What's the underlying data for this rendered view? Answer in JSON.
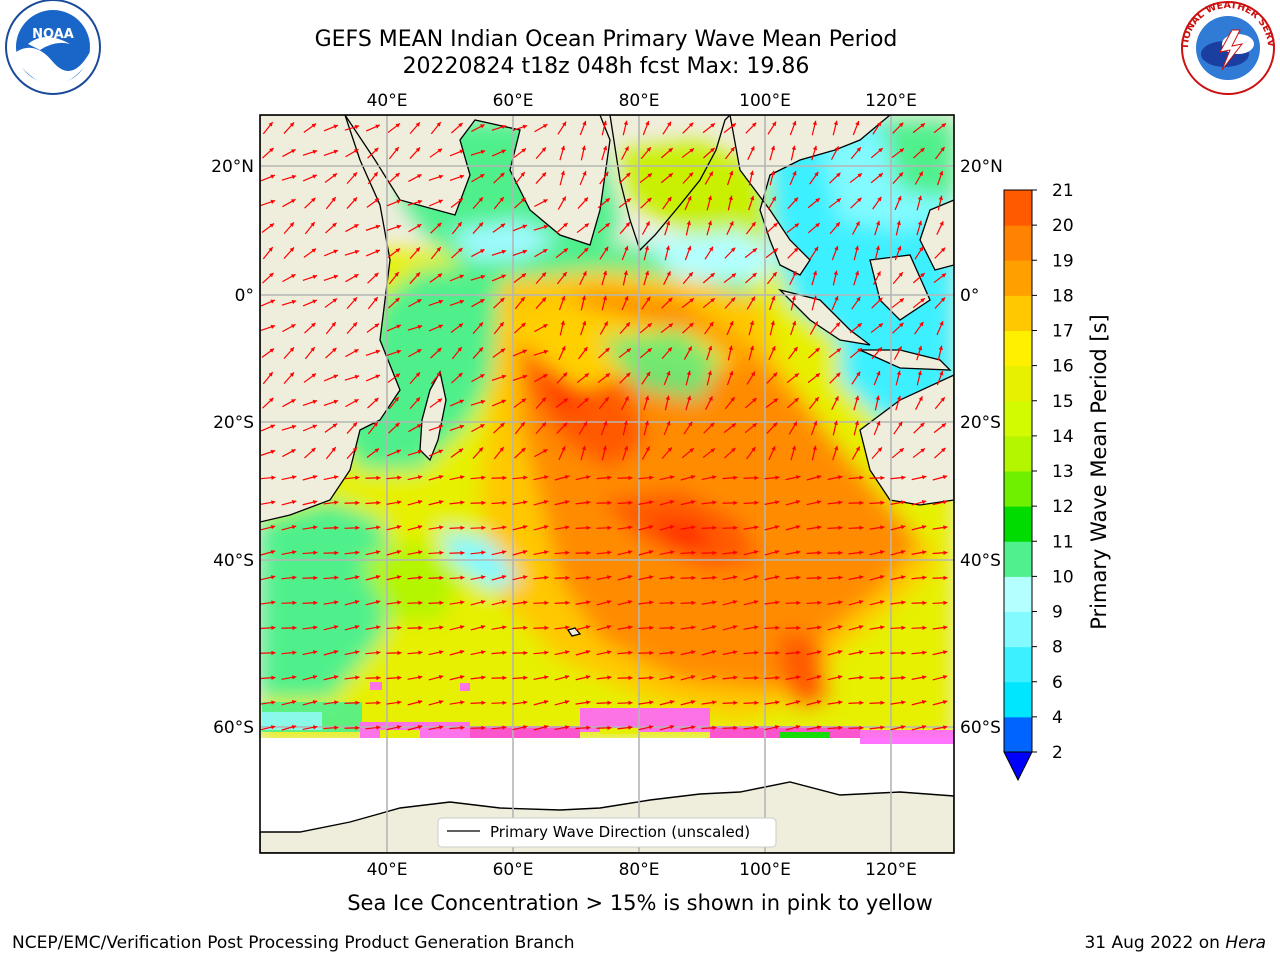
{
  "title": {
    "line1": "GEFS MEAN Indian Ocean Primary Wave Mean Period",
    "line2": "20220824 t18z 048h fcst   Max: 19.86"
  },
  "logos": {
    "left": {
      "icon": "noaa-logo",
      "text": "NOAA"
    },
    "right": {
      "icon": "nws-logo",
      "text": "NATIONAL WEATHER SERVICE"
    }
  },
  "map": {
    "lon_labels": [
      "40°E",
      "60°E",
      "80°E",
      "100°E",
      "120°E"
    ],
    "lat_labels": [
      "20°N",
      "0°",
      "20°S",
      "40°S",
      "60°S"
    ],
    "legend_text": "Primary Wave Direction (unscaled)",
    "arrow_color": "#ff0000",
    "land_color": "#efeedc"
  },
  "colorbar": {
    "label": "Primary Wave Mean Period [s]",
    "ticks": [
      "2",
      "4",
      "6",
      "8",
      "9",
      "10",
      "11",
      "12",
      "13",
      "14",
      "15",
      "16",
      "17",
      "18",
      "19",
      "20",
      "21"
    ],
    "colors": [
      "#0064ff",
      "#00e6ff",
      "#3cf0ff",
      "#82faff",
      "#b4ffff",
      "#50f08c",
      "#00dc00",
      "#6ef000",
      "#b4f500",
      "#d2fa00",
      "#e6f000",
      "#fff000",
      "#ffc800",
      "#ffa000",
      "#ff8200",
      "#ff5a00",
      "#ff2800",
      "#ff0000"
    ],
    "under_color": "#0000ff"
  },
  "note": "Sea Ice Concentration > 15% is shown in pink to yellow",
  "footer": {
    "left": "NCEP/EMC/Verification Post Processing Product Generation Branch",
    "date": "31 Aug 2022 on ",
    "machine": "Hera"
  }
}
